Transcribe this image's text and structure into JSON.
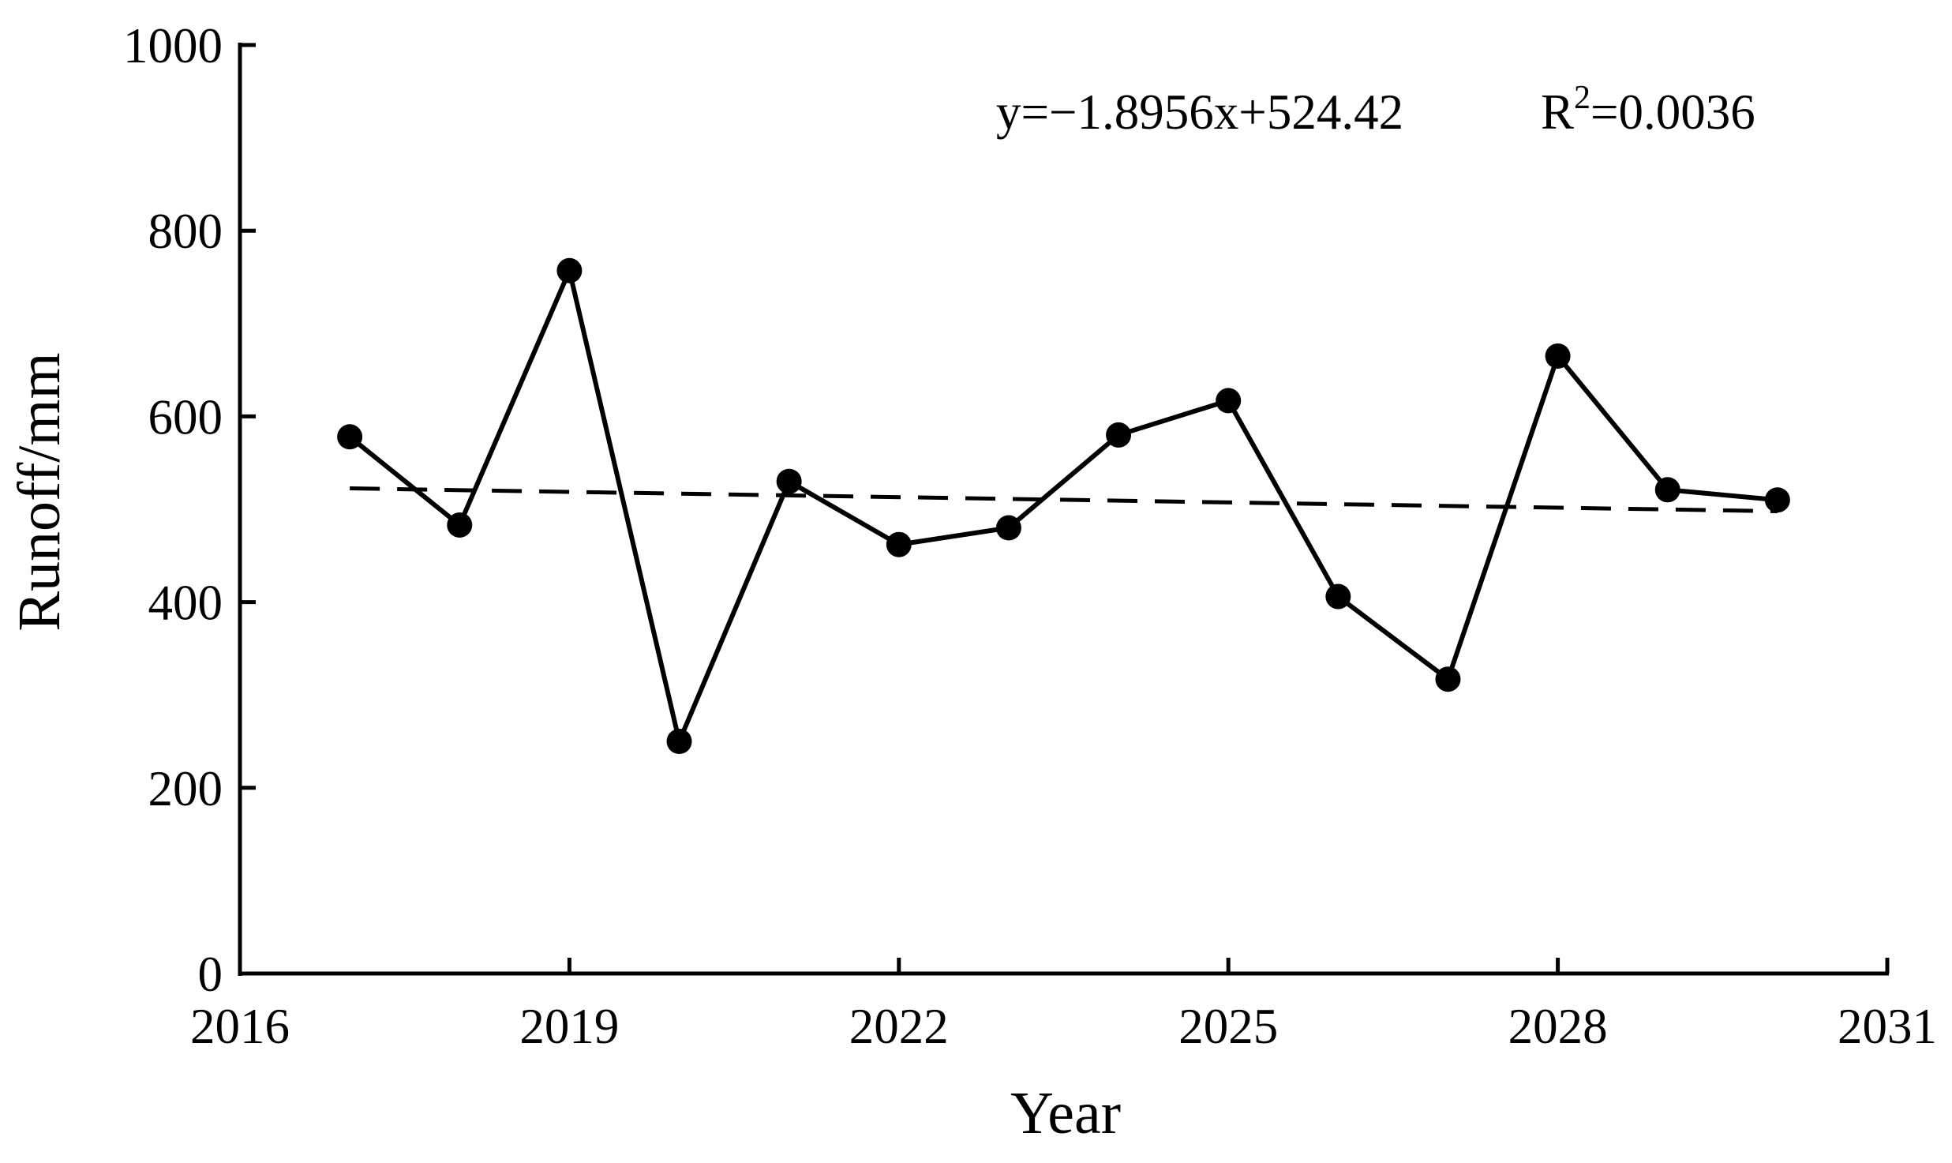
{
  "chart_data": {
    "type": "line",
    "x_label": "Year",
    "y_label": "Runoff/mm",
    "x": [
      2017,
      2018,
      2019,
      2020,
      2021,
      2022,
      2023,
      2024,
      2025,
      2026,
      2027,
      2028,
      2029,
      2030
    ],
    "series": [
      {
        "color": "#000000",
        "values": [
          578,
          483,
          757,
          250,
          530,
          462,
          480,
          580,
          617,
          406,
          317,
          665,
          521,
          510
        ]
      }
    ],
    "trendline": {
      "x": [
        2017,
        2030
      ],
      "values": [
        522.5,
        497.9
      ],
      "color": "#000000",
      "style": "dashed"
    },
    "annotation": {
      "equation": "y=−1.8956x+524.42",
      "r2_base": "R",
      "r2_sup": "2",
      "r2_rest": "=0.0036"
    },
    "xlim": [
      2016,
      2031
    ],
    "xticks": [
      2016,
      2019,
      2022,
      2025,
      2028,
      2031
    ],
    "ylim": [
      0,
      1000
    ],
    "yticks": [
      0,
      200,
      400,
      600,
      800,
      1000
    ],
    "grid": false
  }
}
